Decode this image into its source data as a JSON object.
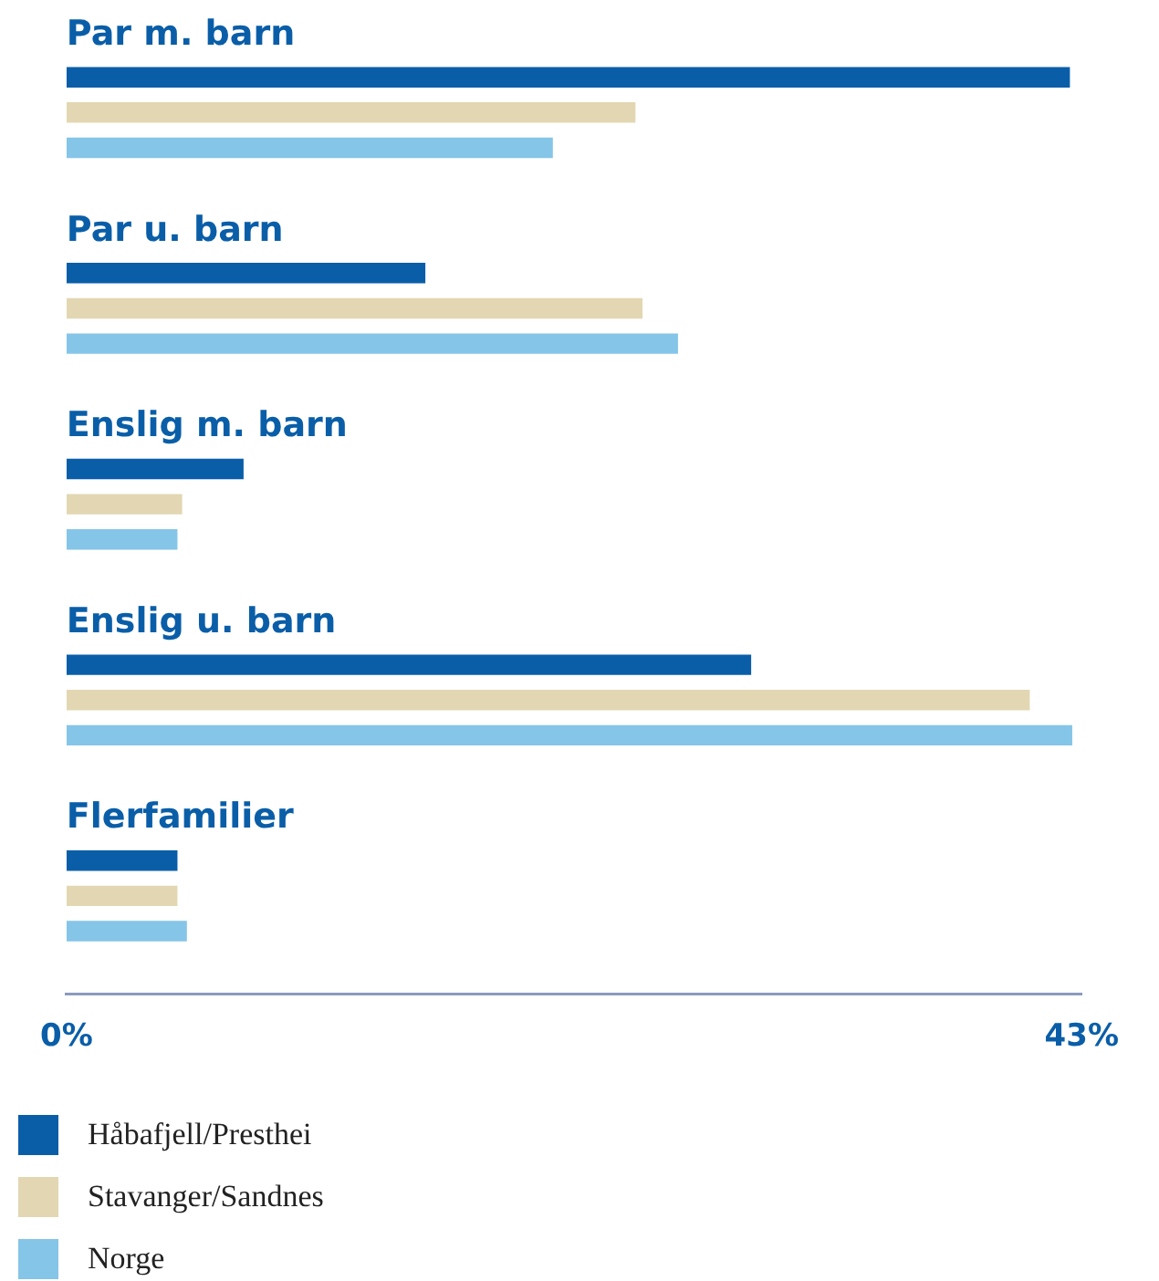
{
  "chart_data": {
    "type": "bar",
    "orientation": "horizontal",
    "categories": [
      "Par m. barn",
      "Par u. barn",
      "Enslig m. barn",
      "Enslig u. barn",
      "Flerfamilier"
    ],
    "series": [
      {
        "name": "Håbafjell/Presthei",
        "color": "#0a5ea8",
        "values": [
          42.5,
          15.2,
          7.5,
          29.0,
          4.7
        ]
      },
      {
        "name": "Stavanger/Sandnes",
        "color": "#e2d7b2",
        "values": [
          24.1,
          24.4,
          4.9,
          40.8,
          4.7
        ]
      },
      {
        "name": "Norge",
        "color": "#85c5e8",
        "values": [
          20.6,
          25.9,
          4.7,
          42.6,
          5.1
        ]
      }
    ],
    "xlim": [
      0,
      43
    ],
    "xticks": [
      {
        "value": 0,
        "label": "0%"
      },
      {
        "value": 43,
        "label": "43%"
      }
    ],
    "grid": false,
    "legend": "bottom"
  }
}
